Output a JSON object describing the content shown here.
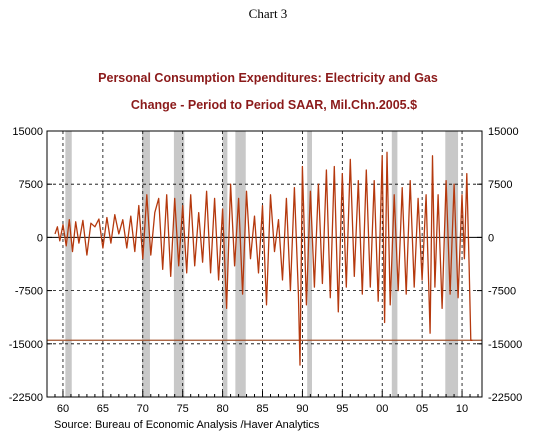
{
  "header": {
    "chart_number": "Chart 3"
  },
  "chart_data": {
    "type": "line",
    "title": "Personal Consumption Expenditures: Electricity and Gas",
    "subtitle": "Change - Period to Period     SAAR, Mil.Chn.2005.$",
    "xlabel": "",
    "ylabel": "",
    "xlim": [
      1958.0,
      2012.5
    ],
    "ylim": [
      -22500,
      15000
    ],
    "x_ticks": [
      1960,
      1965,
      1970,
      1975,
      1980,
      1985,
      1990,
      1995,
      2000,
      2005,
      2010
    ],
    "x_tick_labels": [
      "60",
      "65",
      "70",
      "75",
      "80",
      "85",
      "90",
      "95",
      "00",
      "05",
      "10"
    ],
    "y_ticks": [
      15000,
      7500,
      0,
      -7500,
      -15000,
      -22500
    ],
    "y_tick_labels": [
      "15000",
      "7500",
      "0",
      "-7500",
      "-15000",
      "-22500"
    ],
    "grid": "dashed at x ticks and y ticks",
    "recessions": [
      [
        1960.3,
        1961.1
      ],
      [
        1969.9,
        1970.9
      ],
      [
        1973.9,
        1975.2
      ],
      [
        1980.0,
        1980.6
      ],
      [
        1981.6,
        1982.9
      ],
      [
        1990.6,
        1991.2
      ],
      [
        2001.2,
        2001.9
      ],
      [
        2007.9,
        2009.5
      ]
    ],
    "reference_line": {
      "y": -14500,
      "color": "#a0522d"
    },
    "series": [
      {
        "color": "#b5390e",
        "x": [
          1959.0,
          1959.3,
          1959.6,
          1960.0,
          1960.4,
          1960.8,
          1961.2,
          1961.6,
          1962.0,
          1962.5,
          1963.0,
          1963.5,
          1964.0,
          1964.5,
          1965.0,
          1965.5,
          1966.0,
          1966.5,
          1967.0,
          1967.5,
          1968.0,
          1968.5,
          1969.0,
          1969.5,
          1970.0,
          1970.5,
          1971.0,
          1971.5,
          1972.0,
          1972.5,
          1973.0,
          1973.5,
          1974.0,
          1974.5,
          1975.0,
          1975.5,
          1976.0,
          1976.5,
          1977.0,
          1977.5,
          1978.0,
          1978.5,
          1979.0,
          1979.5,
          1980.0,
          1980.5,
          1981.0,
          1981.5,
          1982.0,
          1982.5,
          1983.0,
          1983.5,
          1984.0,
          1984.5,
          1985.0,
          1985.5,
          1986.0,
          1986.5,
          1987.0,
          1987.5,
          1988.0,
          1988.5,
          1989.0,
          1989.5,
          1989.7,
          1990.0,
          1990.5,
          1991.0,
          1991.5,
          1992.0,
          1992.5,
          1993.0,
          1993.5,
          1994.0,
          1994.5,
          1995.0,
          1995.5,
          1996.0,
          1996.5,
          1997.0,
          1997.5,
          1998.0,
          1998.5,
          1999.0,
          1999.5,
          2000.0,
          2000.3,
          2000.6,
          2001.0,
          2001.5,
          2002.0,
          2002.5,
          2003.0,
          2003.5,
          2004.0,
          2004.5,
          2005.0,
          2005.5,
          2006.0,
          2006.3,
          2006.6,
          2007.0,
          2007.5,
          2008.0,
          2008.5,
          2009.0,
          2009.5,
          2010.0,
          2010.3,
          2010.6,
          2010.9,
          2011.1,
          2011.3
        ],
        "values": [
          500,
          1500,
          -500,
          1800,
          -1200,
          2500,
          -2000,
          2200,
          -800,
          2400,
          -2500,
          2000,
          1500,
          2600,
          -1500,
          2800,
          -800,
          3200,
          500,
          2500,
          -1500,
          3000,
          -2000,
          4500,
          -3000,
          6000,
          -2500,
          3500,
          5500,
          -4500,
          6000,
          -5500,
          5500,
          -4000,
          4500,
          -5000,
          6000,
          -4000,
          3500,
          -3500,
          6500,
          -5000,
          5500,
          -6000,
          4000,
          -10000,
          7500,
          -4000,
          5500,
          -8000,
          6500,
          -3000,
          3000,
          -5000,
          4500,
          -9500,
          6000,
          -2000,
          2500,
          -6000,
          5500,
          -7500,
          7000,
          -8000,
          -18000,
          10000,
          -9500,
          6500,
          -7000,
          7500,
          -6500,
          9500,
          -8500,
          10000,
          -10500,
          9000,
          -7000,
          11000,
          -5500,
          8000,
          -8000,
          9500,
          -7000,
          8000,
          -9000,
          11500,
          -12000,
          12000,
          -9500,
          6000,
          -7500,
          7000,
          -8000,
          8000,
          -7000,
          5500,
          -6000,
          6000,
          -13500,
          11500,
          -7000,
          6000,
          -10000,
          8000,
          -8000,
          7500,
          -8500,
          6000,
          -3000,
          9000,
          -4500,
          -14500,
          -14500
        ]
      }
    ]
  },
  "footer": {
    "source": "Source:  Bureau of Economic Analysis /Haver Analytics"
  }
}
